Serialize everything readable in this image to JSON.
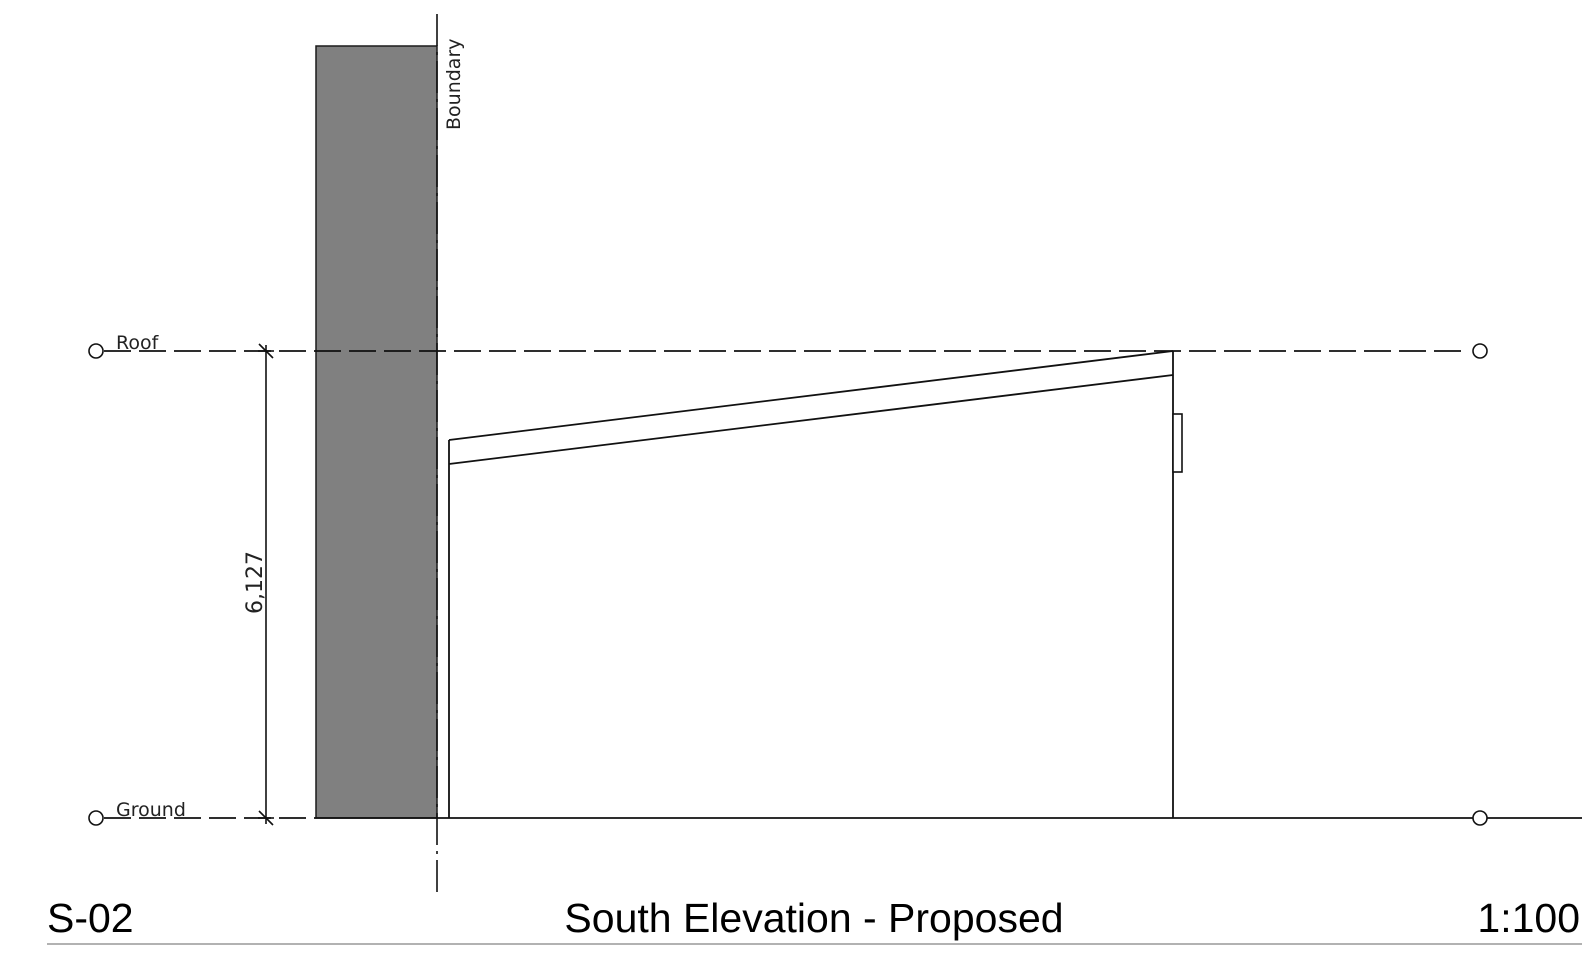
{
  "drawing": {
    "type": "architectural-elevation",
    "levels": [
      {
        "id": "roof",
        "label": "Roof"
      },
      {
        "id": "ground",
        "label": "Ground"
      }
    ],
    "boundary_label": "Boundary",
    "dimension": {
      "value": "6,127",
      "between": [
        "Ground",
        "Roof"
      ]
    },
    "colors": {
      "line": "#000000",
      "neighbour_wall": "#808080",
      "title_rule": "#999999"
    }
  },
  "title_block": {
    "sheet_number": "S-02",
    "title": "South Elevation - Proposed",
    "scale": "1:100"
  }
}
